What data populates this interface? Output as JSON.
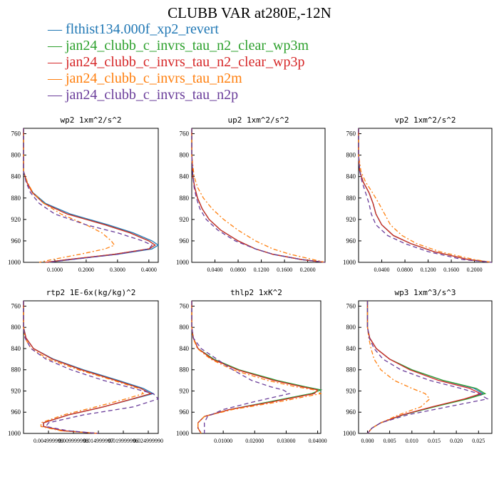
{
  "title": "CLUBB VAR at280E,-12N",
  "legend": [
    {
      "label": "flthist134.000f_xp2_revert",
      "color": "#1f77b4"
    },
    {
      "label": "jan24_clubb_c_invrs_tau_n2_clear_wp3m",
      "color": "#2ca02c"
    },
    {
      "label": "jan24_clubb_c_invrs_tau_n2_clear_wp3p",
      "color": "#d62728"
    },
    {
      "label": "jan24_clubb_c_invrs_tau_n2m",
      "color": "#ff7f0e"
    },
    {
      "label": "jan24_clubb_c_invrs_tau_n2p",
      "color": "#6a3d9a"
    }
  ],
  "chart_data": [
    {
      "type": "line",
      "title": "wp2  1xm^2/s^2",
      "ylim": [
        1000,
        750
      ],
      "xlim": [
        0,
        0.43
      ],
      "yticks": [
        "760",
        "800",
        "840",
        "880",
        "920",
        "960",
        "1000"
      ],
      "ytick_values": [
        760,
        800,
        840,
        880,
        920,
        960,
        1000
      ],
      "xticks": [
        "0.1000",
        "0.2000",
        "0.3000",
        "0.4000"
      ],
      "xtick_values": [
        0.1,
        0.2,
        0.3,
        0.4
      ],
      "y": [
        750,
        800,
        830,
        850,
        870,
        890,
        910,
        930,
        945,
        960,
        968,
        975,
        985,
        995,
        1000
      ],
      "series": [
        {
          "values": [
            0,
            0,
            0,
            0.01,
            0.03,
            0.07,
            0.15,
            0.27,
            0.35,
            0.41,
            0.43,
            0.41,
            0.3,
            0.15,
            0.08
          ]
        },
        {
          "values": [
            0,
            0,
            0,
            0.01,
            0.028,
            0.065,
            0.14,
            0.26,
            0.34,
            0.4,
            0.42,
            0.4,
            0.29,
            0.14,
            0.07
          ]
        },
        {
          "values": [
            0,
            0,
            0,
            0.01,
            0.028,
            0.065,
            0.14,
            0.26,
            0.34,
            0.4,
            0.42,
            0.4,
            0.29,
            0.14,
            0.07
          ]
        },
        {
          "values": [
            0,
            0,
            0,
            0.012,
            0.03,
            0.065,
            0.12,
            0.2,
            0.25,
            0.28,
            0.29,
            0.26,
            0.18,
            0.09,
            0.05
          ]
        },
        {
          "values": [
            0,
            0,
            0,
            0.008,
            0.022,
            0.05,
            0.1,
            0.2,
            0.3,
            0.38,
            0.41,
            0.4,
            0.3,
            0.15,
            0.08
          ]
        }
      ]
    },
    {
      "type": "line",
      "title": "up2  1xm^2/s^2",
      "ylim": [
        1000,
        750
      ],
      "xlim": [
        0,
        0.23
      ],
      "yticks": [
        "760",
        "800",
        "840",
        "880",
        "920",
        "960",
        "1000"
      ],
      "ytick_values": [
        760,
        800,
        840,
        880,
        920,
        960,
        1000
      ],
      "xticks": [
        "0.0400",
        "0.0800",
        "0.1200",
        "0.1600",
        "0.2000"
      ],
      "xtick_values": [
        0.04,
        0.08,
        0.12,
        0.16,
        0.2
      ],
      "y": [
        750,
        800,
        840,
        860,
        880,
        900,
        920,
        940,
        960,
        975,
        985,
        995,
        1000
      ],
      "series": [
        {
          "values": [
            0,
            0,
            0.002,
            0.005,
            0.01,
            0.018,
            0.03,
            0.05,
            0.08,
            0.11,
            0.14,
            0.19,
            0.23
          ]
        },
        {
          "values": [
            0,
            0,
            0.002,
            0.005,
            0.01,
            0.018,
            0.03,
            0.05,
            0.08,
            0.11,
            0.14,
            0.19,
            0.23
          ]
        },
        {
          "values": [
            0,
            0,
            0.002,
            0.005,
            0.01,
            0.018,
            0.03,
            0.05,
            0.08,
            0.11,
            0.14,
            0.19,
            0.23
          ]
        },
        {
          "values": [
            0,
            0,
            0.004,
            0.01,
            0.02,
            0.035,
            0.055,
            0.08,
            0.11,
            0.14,
            0.17,
            0.21,
            0.23
          ]
        },
        {
          "values": [
            0,
            0,
            0.002,
            0.004,
            0.008,
            0.014,
            0.025,
            0.045,
            0.075,
            0.11,
            0.14,
            0.19,
            0.23
          ]
        }
      ]
    },
    {
      "type": "line",
      "title": "vp2  1xm^2/s^2",
      "ylim": [
        1000,
        750
      ],
      "xlim": [
        0,
        0.23
      ],
      "yticks": [
        "760",
        "800",
        "840",
        "880",
        "920",
        "960",
        "1000"
      ],
      "ytick_values": [
        760,
        800,
        840,
        880,
        920,
        960,
        1000
      ],
      "xticks": [
        "0.0400",
        "0.0800",
        "0.1200",
        "0.1600",
        "0.2000"
      ],
      "xtick_values": [
        0.04,
        0.08,
        0.12,
        0.16,
        0.2
      ],
      "y": [
        750,
        800,
        830,
        850,
        870,
        890,
        910,
        930,
        950,
        965,
        980,
        995,
        1000
      ],
      "series": [
        {
          "values": [
            0,
            0,
            0.002,
            0.008,
            0.018,
            0.025,
            0.03,
            0.04,
            0.06,
            0.09,
            0.13,
            0.19,
            0.23
          ]
        },
        {
          "values": [
            0,
            0,
            0.002,
            0.008,
            0.018,
            0.025,
            0.03,
            0.04,
            0.06,
            0.09,
            0.13,
            0.19,
            0.23
          ]
        },
        {
          "values": [
            0,
            0,
            0.002,
            0.008,
            0.018,
            0.025,
            0.03,
            0.04,
            0.06,
            0.09,
            0.13,
            0.19,
            0.23
          ]
        },
        {
          "values": [
            0,
            0,
            0.004,
            0.012,
            0.024,
            0.035,
            0.045,
            0.055,
            0.075,
            0.1,
            0.14,
            0.2,
            0.23
          ]
        },
        {
          "values": [
            0,
            0,
            0.002,
            0.006,
            0.012,
            0.018,
            0.022,
            0.03,
            0.05,
            0.08,
            0.12,
            0.18,
            0.23
          ]
        }
      ]
    },
    {
      "type": "line",
      "title": "rtp2  1E-6x(kg/kg)^2",
      "ylim": [
        1000,
        750
      ],
      "xlim": [
        0,
        0.027
      ],
      "yticks": [
        "760",
        "800",
        "840",
        "880",
        "920",
        "960",
        "1000"
      ],
      "ytick_values": [
        760,
        800,
        840,
        880,
        920,
        960,
        1000
      ],
      "xticks": [
        "0.004999999",
        "0.009999998",
        "0.014999997",
        "0.019999996",
        "0.024999990"
      ],
      "xtick_values": [
        0.005,
        0.01,
        0.015,
        0.02,
        0.025
      ],
      "y": [
        750,
        800,
        820,
        840,
        860,
        880,
        900,
        915,
        925,
        935,
        950,
        965,
        980,
        987,
        995,
        1000
      ],
      "series": [
        {
          "values": [
            0,
            0,
            0.0005,
            0.002,
            0.006,
            0.012,
            0.019,
            0.024,
            0.026,
            0.022,
            0.016,
            0.009,
            0.004,
            0.004,
            0.008,
            0.015
          ]
        },
        {
          "values": [
            0,
            0,
            0.0005,
            0.002,
            0.0058,
            0.0116,
            0.0185,
            0.0235,
            0.0255,
            0.0218,
            0.016,
            0.009,
            0.004,
            0.004,
            0.008,
            0.015
          ]
        },
        {
          "values": [
            0,
            0,
            0.0005,
            0.002,
            0.0058,
            0.0116,
            0.0185,
            0.0235,
            0.0255,
            0.0218,
            0.016,
            0.009,
            0.004,
            0.004,
            0.008,
            0.015
          ]
        },
        {
          "values": [
            0,
            0,
            0.0003,
            0.0015,
            0.005,
            0.011,
            0.018,
            0.023,
            0.024,
            0.0205,
            0.0145,
            0.008,
            0.0035,
            0.0035,
            0.0075,
            0.015
          ]
        },
        {
          "values": [
            0,
            0,
            0.0003,
            0.0015,
            0.0045,
            0.0095,
            0.016,
            0.022,
            0.026,
            0.027,
            0.022,
            0.012,
            0.005,
            0.0045,
            0.009,
            0.015
          ]
        }
      ]
    },
    {
      "type": "line",
      "title": "thlp2  1xK^2",
      "ylim": [
        1000,
        750
      ],
      "xlim": [
        0,
        0.041
      ],
      "yticks": [
        "760",
        "800",
        "840",
        "880",
        "920",
        "960",
        "1000"
      ],
      "ytick_values": [
        760,
        800,
        840,
        880,
        920,
        960,
        1000
      ],
      "xticks": [
        "0.01000",
        "0.02000",
        "0.03000",
        "0.04000"
      ],
      "xtick_values": [
        0.01,
        0.02,
        0.03,
        0.04
      ],
      "y": [
        750,
        800,
        820,
        840,
        860,
        880,
        900,
        912,
        918,
        925,
        940,
        955,
        968,
        980,
        990,
        1000
      ],
      "series": [
        {
          "values": [
            0,
            0,
            0.0005,
            0.002,
            0.007,
            0.015,
            0.027,
            0.036,
            0.041,
            0.038,
            0.025,
            0.012,
            0.004,
            0.002,
            0.002,
            0.003
          ]
        },
        {
          "values": [
            0,
            0,
            0.0005,
            0.002,
            0.007,
            0.015,
            0.027,
            0.036,
            0.041,
            0.038,
            0.025,
            0.012,
            0.004,
            0.002,
            0.002,
            0.003
          ]
        },
        {
          "values": [
            0,
            0,
            0.0005,
            0.002,
            0.0065,
            0.0145,
            0.026,
            0.035,
            0.04,
            0.039,
            0.026,
            0.012,
            0.004,
            0.002,
            0.002,
            0.003
          ]
        },
        {
          "values": [
            0,
            0,
            0.0004,
            0.0018,
            0.006,
            0.013,
            0.024,
            0.033,
            0.039,
            0.041,
            0.028,
            0.013,
            0.004,
            0.002,
            0.002,
            0.003
          ]
        },
        {
          "values": [
            0,
            0,
            0.0005,
            0.003,
            0.008,
            0.013,
            0.019,
            0.025,
            0.029,
            0.031,
            0.02,
            0.01,
            0.005,
            0.004,
            0.004,
            0.004
          ]
        }
      ]
    },
    {
      "type": "line",
      "title": "wp3  1xm^3/s^3",
      "ylim": [
        1000,
        750
      ],
      "xlim": [
        -0.002,
        0.028
      ],
      "yticks": [
        "760",
        "800",
        "840",
        "880",
        "920",
        "960",
        "1000"
      ],
      "ytick_values": [
        760,
        800,
        840,
        880,
        920,
        960,
        1000
      ],
      "xticks": [
        "0.000",
        "0.005",
        "0.010",
        "0.015",
        "0.020",
        "0.025"
      ],
      "xtick_values": [
        0,
        0.005,
        0.01,
        0.015,
        0.02,
        0.025
      ],
      "y": [
        750,
        800,
        820,
        840,
        860,
        880,
        900,
        915,
        925,
        935,
        950,
        965,
        980,
        990,
        1000
      ],
      "series": [
        {
          "values": [
            0,
            0,
            0.0005,
            0.002,
            0.005,
            0.01,
            0.017,
            0.024,
            0.026,
            0.022,
            0.015,
            0.008,
            0.003,
            0.001,
            0
          ]
        },
        {
          "values": [
            0,
            0,
            0.0005,
            0.002,
            0.005,
            0.01,
            0.017,
            0.0245,
            0.0265,
            0.0225,
            0.015,
            0.008,
            0.003,
            0.001,
            0
          ]
        },
        {
          "values": [
            0,
            0,
            0.0005,
            0.002,
            0.005,
            0.0095,
            0.016,
            0.023,
            0.0255,
            0.0218,
            0.0145,
            0.0078,
            0.003,
            0.001,
            0
          ]
        },
        {
          "values": [
            0,
            0,
            0.0003,
            0.0008,
            0.0015,
            0.003,
            0.006,
            0.01,
            0.013,
            0.014,
            0.012,
            0.007,
            0.003,
            0.001,
            0
          ]
        },
        {
          "values": [
            0,
            0,
            0.0004,
            0.0015,
            0.0035,
            0.0075,
            0.014,
            0.021,
            0.025,
            0.027,
            0.018,
            0.009,
            0.003,
            0.001,
            0
          ]
        }
      ]
    }
  ]
}
